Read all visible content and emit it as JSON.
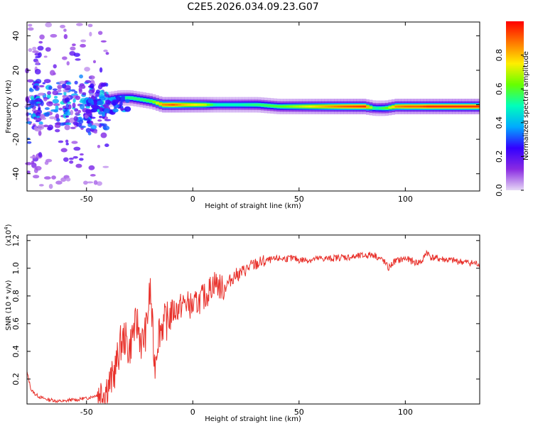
{
  "figure": {
    "title": "C2E5.2026.034.09.23.G07"
  },
  "chart_data": [
    {
      "type": "heatmap",
      "xlabel": "Height of straight line (km)",
      "ylabel": "Frequency (Hz)",
      "xlim": [
        -78,
        135
      ],
      "ylim": [
        -50,
        48
      ],
      "xticks": [
        -50,
        0,
        50,
        100
      ],
      "xtick_labels": [
        "-50",
        "0",
        "50",
        "100"
      ],
      "yticks": [
        -40,
        -20,
        0,
        20,
        40
      ],
      "ytick_labels": [
        "-40",
        "-20",
        "0",
        "20",
        "40"
      ],
      "colorbar": {
        "label": "Normalized spectral amplitude",
        "range": [
          0,
          1
        ],
        "ticks": [
          0.0,
          0.2,
          0.4,
          0.6,
          0.8
        ],
        "tick_labels": [
          "0.0",
          "0.2",
          "0.4",
          "0.6",
          "0.8"
        ],
        "colormap": [
          "#e6d8f5",
          "#8a2be2",
          "#3300ff",
          "#00aaff",
          "#00ffbb",
          "#66ff00",
          "#ffee00",
          "#ff7700",
          "#ff0000"
        ]
      },
      "ridge": {
        "x": [
          -40,
          -35,
          -30,
          -25,
          -20,
          -15,
          -10,
          -5,
          0,
          5,
          10,
          20,
          30,
          40,
          50,
          60,
          70,
          80,
          85,
          90,
          95,
          100,
          105,
          110,
          120,
          130,
          135
        ],
        "y": [
          3,
          4,
          4,
          3,
          2,
          0,
          0,
          0,
          0,
          0,
          0,
          0,
          0,
          -1,
          -1,
          -1,
          -1,
          -1,
          -2,
          -2,
          -1,
          -1,
          -1,
          -1,
          -1,
          -1,
          -1
        ],
        "amplitude": [
          0.45,
          0.5,
          0.55,
          0.55,
          0.6,
          0.85,
          0.9,
          0.8,
          0.75,
          0.7,
          0.5,
          0.5,
          0.55,
          0.6,
          0.7,
          0.8,
          0.9,
          0.95,
          0.5,
          0.6,
          0.85,
          0.9,
          0.9,
          0.95,
          0.95,
          0.95,
          0.95
        ]
      }
    },
    {
      "type": "line",
      "xlabel": "Height of straight line (km)",
      "ylabel": "SNR (10 * v/v)",
      "y_multiplier": "(x10",
      "y_multiplier_exp": "4",
      "xlim": [
        -78,
        135
      ],
      "ylim": [
        0.02,
        1.24
      ],
      "xticks": [
        -50,
        0,
        50,
        100
      ],
      "xtick_labels": [
        "-50",
        "0",
        "50",
        "100"
      ],
      "yticks": [
        0.2,
        0.4,
        0.6,
        0.8,
        1.0,
        1.2
      ],
      "ytick_labels": [
        "0.2",
        "0.4",
        "0.6",
        "0.8",
        "1.0",
        "1.2"
      ],
      "series": [
        {
          "color": "#e8302a",
          "x": [
            -78,
            -76,
            -74,
            -72,
            -70,
            -68,
            -66,
            -64,
            -62,
            -60,
            -58,
            -56,
            -54,
            -52,
            -50,
            -48,
            -46,
            -44,
            -42,
            -40,
            -38,
            -36,
            -34,
            -32,
            -30,
            -28,
            -26,
            -24,
            -22,
            -20,
            -18,
            -16,
            -14,
            -12,
            -10,
            -8,
            -6,
            -4,
            -2,
            0,
            2,
            4,
            6,
            8,
            10,
            12,
            14,
            16,
            18,
            20,
            22,
            24,
            26,
            28,
            30,
            32,
            34,
            36,
            38,
            40,
            42,
            44,
            46,
            48,
            50,
            55,
            60,
            65,
            70,
            75,
            80,
            85,
            90,
            92,
            95,
            100,
            105,
            108,
            110,
            112,
            115,
            120,
            125,
            130,
            135
          ],
          "y": [
            0.25,
            0.12,
            0.09,
            0.07,
            0.06,
            0.05,
            0.05,
            0.04,
            0.04,
            0.04,
            0.05,
            0.05,
            0.05,
            0.06,
            0.06,
            0.07,
            0.08,
            0.1,
            0.12,
            0.15,
            0.2,
            0.3,
            0.45,
            0.5,
            0.4,
            0.55,
            0.6,
            0.45,
            0.55,
            0.85,
            0.3,
            0.55,
            0.6,
            0.62,
            0.68,
            0.7,
            0.72,
            0.75,
            0.74,
            0.72,
            0.75,
            0.78,
            0.8,
            0.85,
            0.9,
            0.88,
            0.85,
            0.88,
            0.92,
            0.95,
            0.96,
            0.98,
            1.0,
            1.02,
            1.03,
            1.04,
            1.05,
            1.06,
            1.06,
            1.07,
            1.07,
            1.07,
            1.07,
            1.07,
            1.06,
            1.06,
            1.07,
            1.07,
            1.08,
            1.08,
            1.09,
            1.1,
            1.05,
            1.0,
            1.05,
            1.07,
            1.04,
            1.05,
            1.12,
            1.08,
            1.07,
            1.06,
            1.05,
            1.04,
            1.03
          ]
        }
      ]
    }
  ]
}
